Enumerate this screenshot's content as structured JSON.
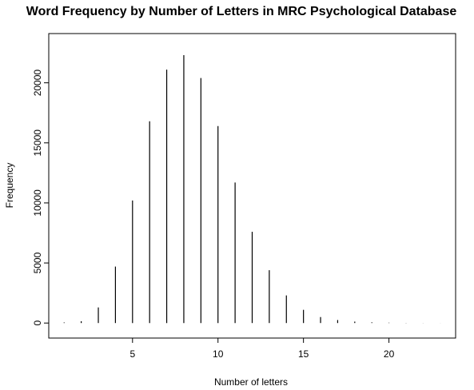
{
  "chart_data": {
    "type": "bar",
    "style": "histogram-spikes",
    "title": "Word Frequency by Number of Letters in MRC Psychological Database",
    "xlabel": "Number of letters",
    "ylabel": "Frequency",
    "x": [
      1,
      2,
      3,
      4,
      5,
      6,
      7,
      8,
      9,
      10,
      11,
      12,
      13,
      14,
      15,
      16,
      17,
      18,
      19,
      20,
      21,
      22,
      23
    ],
    "values": [
      50,
      150,
      1300,
      4700,
      10200,
      16800,
      21100,
      22300,
      20400,
      16400,
      11700,
      7600,
      4400,
      2300,
      1100,
      500,
      250,
      120,
      60,
      30,
      15,
      8,
      4
    ],
    "xlim": [
      0.1,
      23.9
    ],
    "ylim": [
      -1250,
      24100
    ],
    "xticks": [
      5,
      10,
      15,
      20
    ],
    "yticks": [
      0,
      5000,
      10000,
      15000,
      20000
    ],
    "grid": false
  }
}
